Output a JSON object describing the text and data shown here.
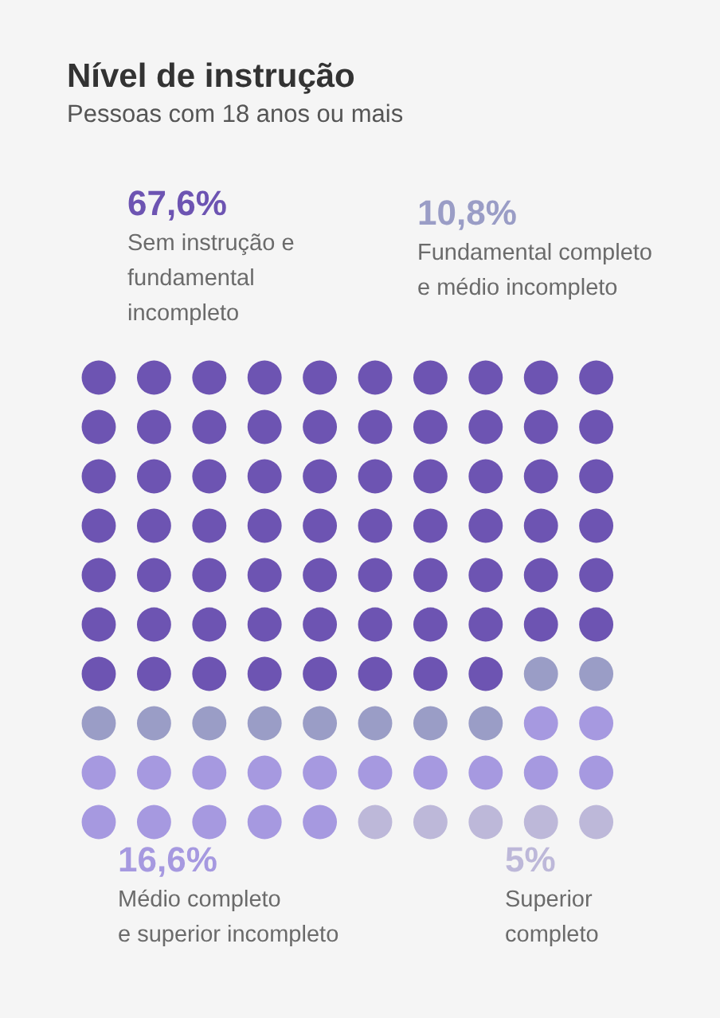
{
  "chart_data": {
    "type": "other",
    "title": "Nível de instrução",
    "subtitle": "Pessoas com 18 anos ou mais",
    "categories": [
      "Sem instrução e\nfundamental\nincompleto",
      "Fundamental completo\ne médio incompleto",
      "Médio completo\ne superior incompleto",
      "Superior\ncompleto"
    ],
    "values": [
      67.6,
      10.8,
      16.6,
      5
    ],
    "value_labels": [
      "67,6%",
      "10,8%",
      "16,6%",
      "5%"
    ],
    "colors": [
      "#6d54b2",
      "#9a9dc6",
      "#a699e0",
      "#bdb8d9"
    ]
  }
}
